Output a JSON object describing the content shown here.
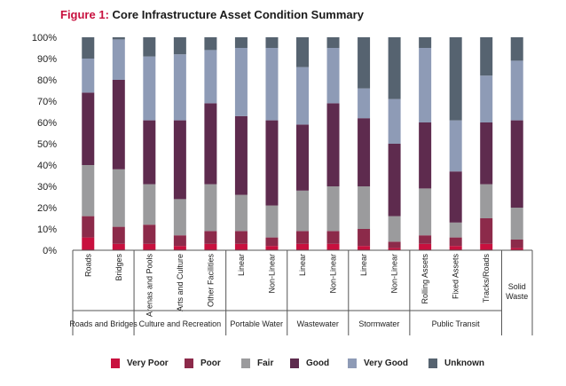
{
  "title": {
    "figure_label": "Figure 1:",
    "text": "Core Infrastructure Asset Condition Summary"
  },
  "chart_data": {
    "type": "bar",
    "stacked": true,
    "y_ticks": [
      "0%",
      "10%",
      "20%",
      "30%",
      "40%",
      "50%",
      "60%",
      "70%",
      "80%",
      "90%",
      "100%"
    ],
    "ylim": [
      0,
      100
    ],
    "grid": false,
    "legend_position": "bottom",
    "categories": [
      "Roads",
      "Bridges",
      "Arenas and Pools",
      "Arts and Culture",
      "Other Facilities",
      "Linear",
      "Non-Linear",
      "Linear",
      "Non-Linear",
      "Linear",
      "Non-Linear",
      "Rolling Assets",
      "Fixed Assets",
      "Tracks/Roads",
      "Solid Waste"
    ],
    "groups": [
      {
        "label": "Roads and Bridges",
        "count": 2
      },
      {
        "label": "Culture and Recreation",
        "count": 3
      },
      {
        "label": "Portable Water",
        "count": 2
      },
      {
        "label": "Wastewater",
        "count": 2
      },
      {
        "label": "Stormwater",
        "count": 2
      },
      {
        "label": "Public Transit",
        "count": 3
      },
      {
        "label": "Solid Waste",
        "count": 1
      }
    ],
    "series": [
      {
        "name": "Very Poor",
        "color": "#c8103e",
        "values": [
          6,
          3,
          3,
          2,
          3,
          3,
          2,
          3,
          3,
          2,
          1,
          3,
          2,
          3,
          1
        ]
      },
      {
        "name": "Poor",
        "color": "#8c2a4a",
        "values": [
          10,
          8,
          9,
          5,
          6,
          6,
          4,
          6,
          6,
          8,
          3,
          4,
          4,
          12,
          4
        ]
      },
      {
        "name": "Fair",
        "color": "#9b9b9d",
        "values": [
          24,
          27,
          19,
          17,
          22,
          17,
          15,
          19,
          21,
          20,
          12,
          22,
          7,
          16,
          15
        ]
      },
      {
        "name": "Good",
        "color": "#5e2b4e",
        "values": [
          34,
          42,
          30,
          37,
          38,
          37,
          40,
          31,
          39,
          32,
          34,
          31,
          24,
          29,
          41
        ]
      },
      {
        "name": "Very Good",
        "color": "#8e9bb6",
        "values": [
          16,
          19,
          30,
          31,
          25,
          32,
          34,
          27,
          26,
          14,
          21,
          35,
          24,
          22,
          28
        ]
      },
      {
        "name": "Unknown",
        "color": "#566370",
        "values": [
          10,
          1,
          9,
          8,
          6,
          5,
          5,
          14,
          5,
          24,
          29,
          5,
          39,
          18,
          11
        ]
      }
    ]
  }
}
